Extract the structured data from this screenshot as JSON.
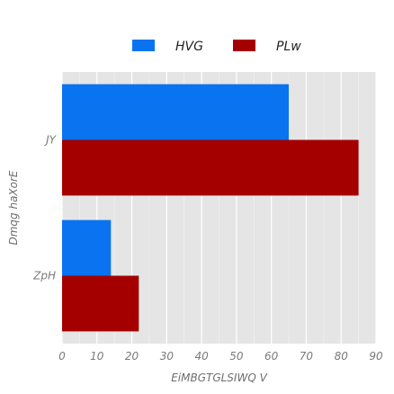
{
  "chart_data": {
    "type": "bar",
    "orientation": "horizontal",
    "categories": [
      "JY",
      "ZpH"
    ],
    "series": [
      {
        "name": "HVG",
        "values": [
          65,
          14
        ],
        "color": "#0a73f0"
      },
      {
        "name": "PLw",
        "values": [
          85,
          22
        ],
        "color": "#a50000"
      }
    ],
    "xlabel": "EiMBGTGLSIWQ V",
    "ylabel": "Dmqg haXorE",
    "xlim": [
      0,
      90
    ],
    "xticks": [
      0,
      10,
      20,
      30,
      40,
      50,
      60,
      70,
      80,
      90
    ],
    "grid": true,
    "legend_position": "top"
  }
}
